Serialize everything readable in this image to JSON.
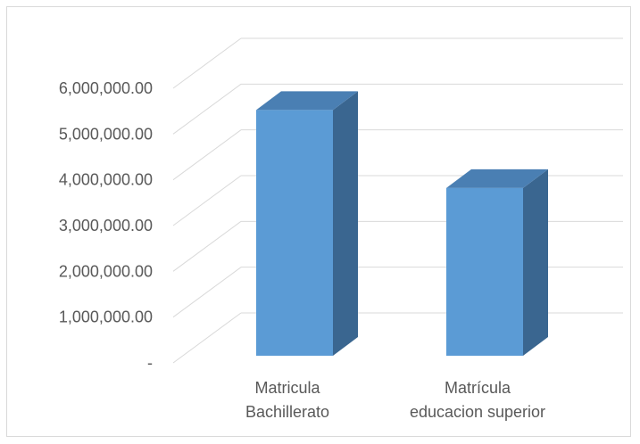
{
  "chart_data": {
    "type": "bar",
    "style": "3d-column",
    "categories": [
      [
        "Matricula",
        "Bachillerato"
      ],
      [
        "Matrícula",
        "educacion superior"
      ]
    ],
    "values": [
      5200000,
      3550000
    ],
    "y_ticks": [
      "-",
      "1,000,000.00",
      "2,000,000.00",
      "3,000,000.00",
      "4,000,000.00",
      "5,000,000.00",
      "6,000,000.00"
    ],
    "ylim": [
      0,
      6000000
    ],
    "grid": true,
    "legend": "none",
    "colors": {
      "bar_front": "#5b9bd5",
      "bar_top": "#4a7fb3",
      "bar_side": "#3a6690",
      "grid": "#d9d9d9",
      "text": "#595959"
    }
  }
}
